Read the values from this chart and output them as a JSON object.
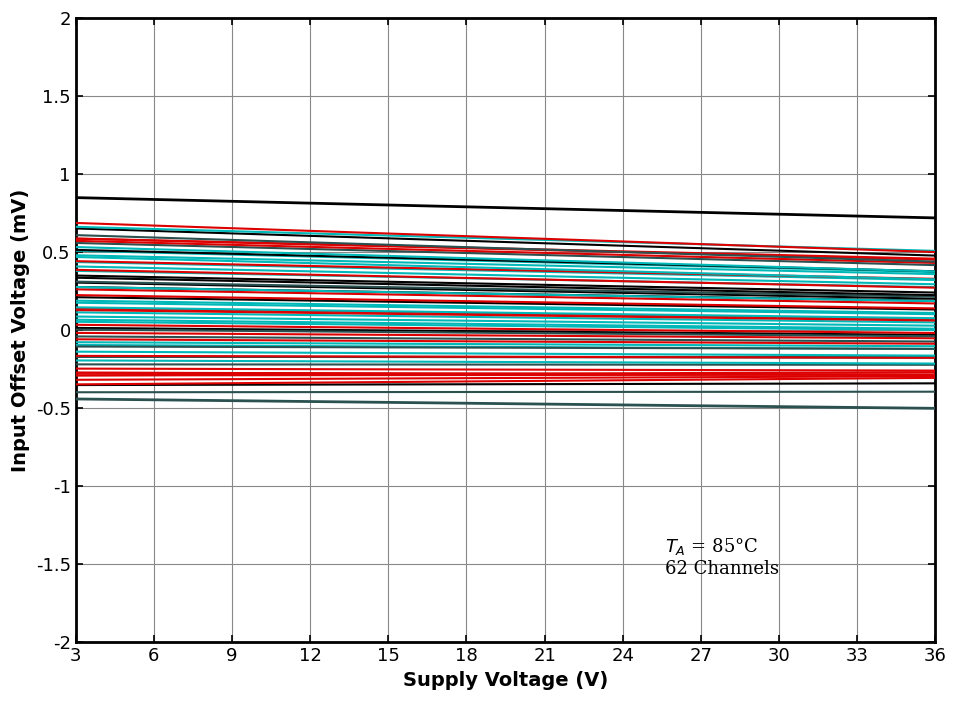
{
  "xlabel": "Supply Voltage (V)",
  "ylabel": "Input Offset Voltage (mV)",
  "annotation_line1": "T",
  "annotation_sub": "A",
  "annotation_rest": " = 85°C",
  "annotation_line2": "62 Channels",
  "xlim": [
    3,
    36
  ],
  "ylim": [
    -2,
    2
  ],
  "xticks": [
    3,
    6,
    9,
    12,
    15,
    18,
    21,
    24,
    27,
    30,
    33,
    36
  ],
  "yticks": [
    -2,
    -1.5,
    -1,
    -0.5,
    0,
    0.5,
    1,
    1.5,
    2
  ],
  "color_black": "#000000",
  "color_red": "#dd0000",
  "color_cyan": "#00b8b8",
  "color_darkgray": "#2a5050",
  "n_channels": 62,
  "x_start": 3,
  "x_end": 36,
  "background_color": "#ffffff",
  "linewidth": 1.5,
  "seed": 7
}
